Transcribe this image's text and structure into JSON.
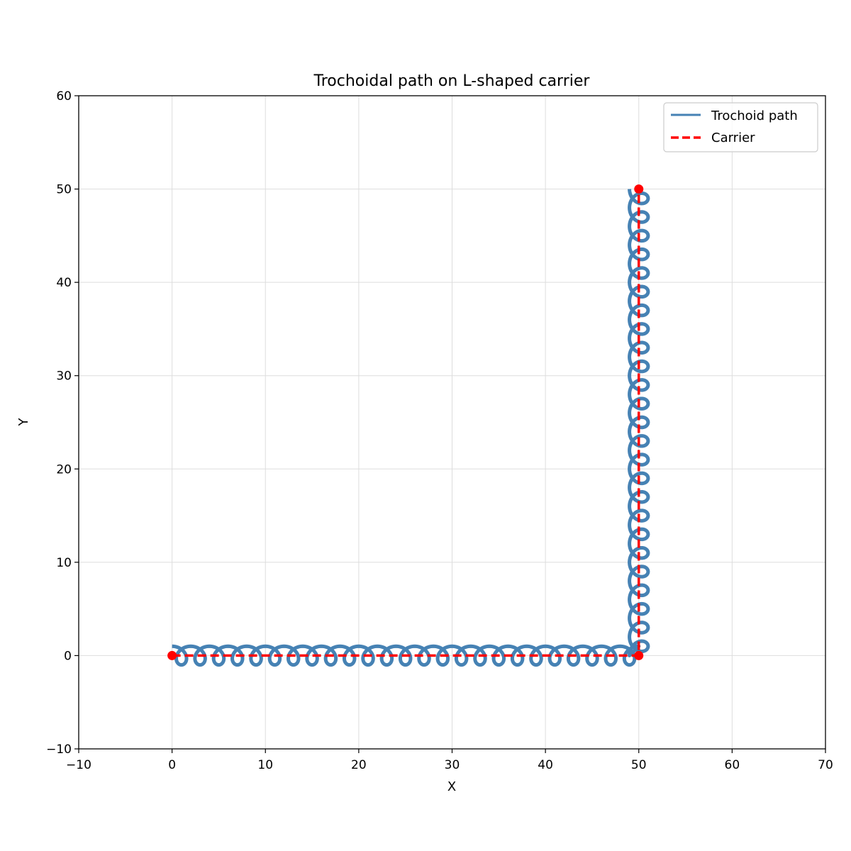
{
  "chart_data": {
    "type": "line",
    "title": "Trochoidal path on L-shaped carrier",
    "xlabel": "X",
    "ylabel": "Y",
    "xlim": [
      -10,
      70
    ],
    "ylim": [
      -10,
      60
    ],
    "xticks": [
      -10,
      0,
      10,
      20,
      30,
      40,
      50,
      60,
      70
    ],
    "yticks": [
      -10,
      0,
      10,
      20,
      30,
      40,
      50,
      60
    ],
    "xtick_labels": [
      "−10",
      "0",
      "10",
      "20",
      "30",
      "40",
      "50",
      "60",
      "70"
    ],
    "ytick_labels": [
      "−10",
      "0",
      "10",
      "20",
      "30",
      "40",
      "50",
      "60"
    ],
    "grid": true,
    "legend_position": "top-right",
    "series": [
      {
        "name": "Trochoid path",
        "color": "#4682b4",
        "style": "solid",
        "kind": "trochoid",
        "radius": 1.0,
        "loops_per_segment": 25,
        "segments": [
          {
            "from": [
              0,
              0
            ],
            "to": [
              50,
              0
            ]
          },
          {
            "from": [
              50,
              0
            ],
            "to": [
              50,
              50
            ]
          }
        ]
      },
      {
        "name": "Carrier",
        "color": "#ff0000",
        "style": "dashed",
        "x": [
          0,
          50,
          50
        ],
        "y": [
          0,
          0,
          50
        ]
      }
    ],
    "markers": [
      {
        "x": 0,
        "y": 0,
        "color": "#ff0000"
      },
      {
        "x": 50,
        "y": 0,
        "color": "#ff0000"
      },
      {
        "x": 50,
        "y": 50,
        "color": "#ff0000"
      }
    ]
  }
}
